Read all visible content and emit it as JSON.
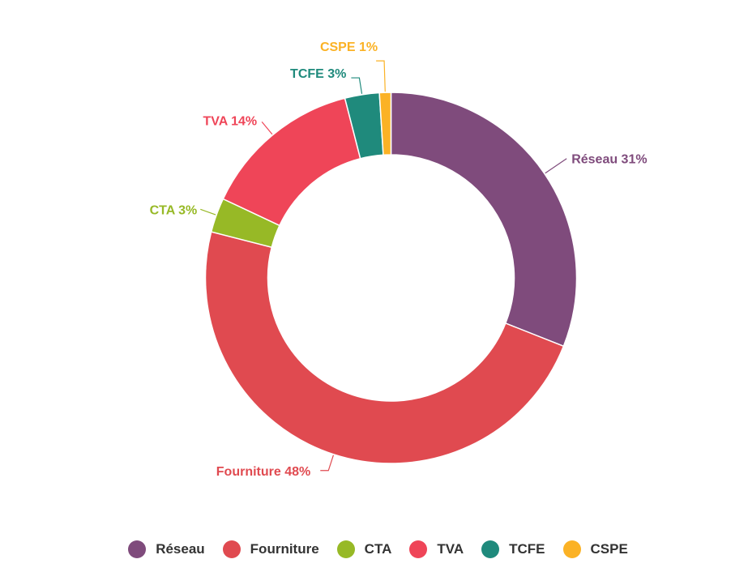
{
  "chart_data": {
    "type": "pie",
    "variant": "donut",
    "title": "",
    "legend_position": "bottom",
    "slices": [
      {
        "name": "Réseau",
        "value": 31,
        "label": "Réseau 31%",
        "color": "#7f4b7c"
      },
      {
        "name": "Fourniture",
        "value": 48,
        "label": "Fourniture 48%",
        "color": "#e04a50"
      },
      {
        "name": "CTA",
        "value": 3,
        "label": "CTA 3%",
        "color": "#97b926"
      },
      {
        "name": "TVA",
        "value": 14,
        "label": "TVA 14%",
        "color": "#ef4558"
      },
      {
        "name": "TCFE",
        "value": 3,
        "label": "TCFE 3%",
        "color": "#1f8a7c"
      },
      {
        "name": "CSPE",
        "value": 1,
        "label": "CSPE 1%",
        "color": "#fbb225"
      }
    ]
  },
  "legend": {
    "items": [
      {
        "label": "Réseau",
        "color": "#7f4b7c"
      },
      {
        "label": "Fourniture",
        "color": "#e04a50"
      },
      {
        "label": "CTA",
        "color": "#97b926"
      },
      {
        "label": "TVA",
        "color": "#ef4558"
      },
      {
        "label": "TCFE",
        "color": "#1f8a7c"
      },
      {
        "label": "CSPE",
        "color": "#fbb225"
      }
    ]
  }
}
